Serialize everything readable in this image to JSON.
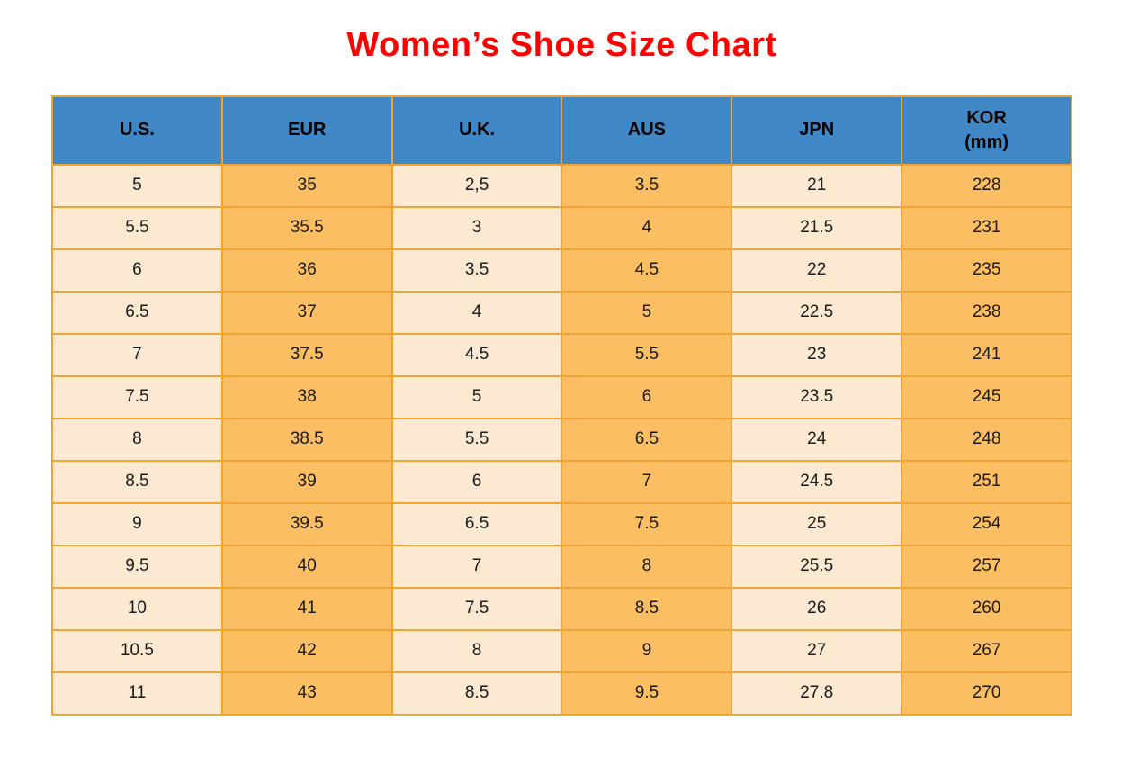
{
  "title": "Women’s Shoe Size Chart",
  "colors": {
    "title_red": "#ff0000",
    "header_bg": "#4087c6",
    "cell_cream": "#fce9d2",
    "cell_orange": "#fcbe63",
    "border": "#f0a433",
    "header_text": "#000000",
    "cell_text": "#1a1a1a"
  },
  "table": {
    "columns": [
      {
        "key": "us",
        "label": "U.S."
      },
      {
        "key": "eur",
        "label": "EUR"
      },
      {
        "key": "uk",
        "label": "U.K."
      },
      {
        "key": "aus",
        "label": "AUS"
      },
      {
        "key": "jpn",
        "label": "JPN"
      },
      {
        "key": "kor",
        "label": "KOR",
        "sublabel": "(mm)"
      }
    ],
    "rows": [
      [
        "5",
        "35",
        "2,5",
        "3.5",
        "21",
        "228"
      ],
      [
        "5.5",
        "35.5",
        "3",
        "4",
        "21.5",
        "231"
      ],
      [
        "6",
        "36",
        "3.5",
        "4.5",
        "22",
        "235"
      ],
      [
        "6.5",
        "37",
        "4",
        "5",
        "22.5",
        "238"
      ],
      [
        "7",
        "37.5",
        "4.5",
        "5.5",
        "23",
        "241"
      ],
      [
        "7.5",
        "38",
        "5",
        "6",
        "23.5",
        "245"
      ],
      [
        "8",
        "38.5",
        "5.5",
        "6.5",
        "24",
        "248"
      ],
      [
        "8.5",
        "39",
        "6",
        "7",
        "24.5",
        "251"
      ],
      [
        "9",
        "39.5",
        "6.5",
        "7.5",
        "25",
        "254"
      ],
      [
        "9.5",
        "40",
        "7",
        "8",
        "25.5",
        "257"
      ],
      [
        "10",
        "41",
        "7.5",
        "8.5",
        "26",
        "260"
      ],
      [
        "10.5",
        "42",
        "8",
        "9",
        "27",
        "267"
      ],
      [
        "11",
        "43",
        "8.5",
        "9.5",
        "27.8",
        "270"
      ]
    ]
  },
  "chart_data": {
    "type": "table",
    "title": "Women’s Shoe Size Chart",
    "columns": [
      "U.S.",
      "EUR",
      "U.K.",
      "AUS",
      "JPN",
      "KOR (mm)"
    ],
    "rows": [
      [
        "5",
        "35",
        "2,5",
        "3.5",
        "21",
        "228"
      ],
      [
        "5.5",
        "35.5",
        "3",
        "4",
        "21.5",
        "231"
      ],
      [
        "6",
        "36",
        "3.5",
        "4.5",
        "22",
        "235"
      ],
      [
        "6.5",
        "37",
        "4",
        "5",
        "22.5",
        "238"
      ],
      [
        "7",
        "37.5",
        "4.5",
        "5.5",
        "23",
        "241"
      ],
      [
        "7.5",
        "38",
        "5",
        "6",
        "23.5",
        "245"
      ],
      [
        "8",
        "38.5",
        "5.5",
        "6.5",
        "24",
        "248"
      ],
      [
        "8.5",
        "39",
        "6",
        "7",
        "24.5",
        "251"
      ],
      [
        "9",
        "39.5",
        "6.5",
        "7.5",
        "25",
        "254"
      ],
      [
        "9.5",
        "40",
        "7",
        "8",
        "25.5",
        "257"
      ],
      [
        "10",
        "41",
        "7.5",
        "8.5",
        "26",
        "260"
      ],
      [
        "10.5",
        "42",
        "8",
        "9",
        "27",
        "267"
      ],
      [
        "11",
        "43",
        "8.5",
        "9.5",
        "27.8",
        "270"
      ]
    ],
    "layout_hints": {
      "header_fill": "#4087c6",
      "odd_column_fill": "#fce9d2",
      "even_column_fill": "#fcbe63",
      "grid": true
    }
  }
}
